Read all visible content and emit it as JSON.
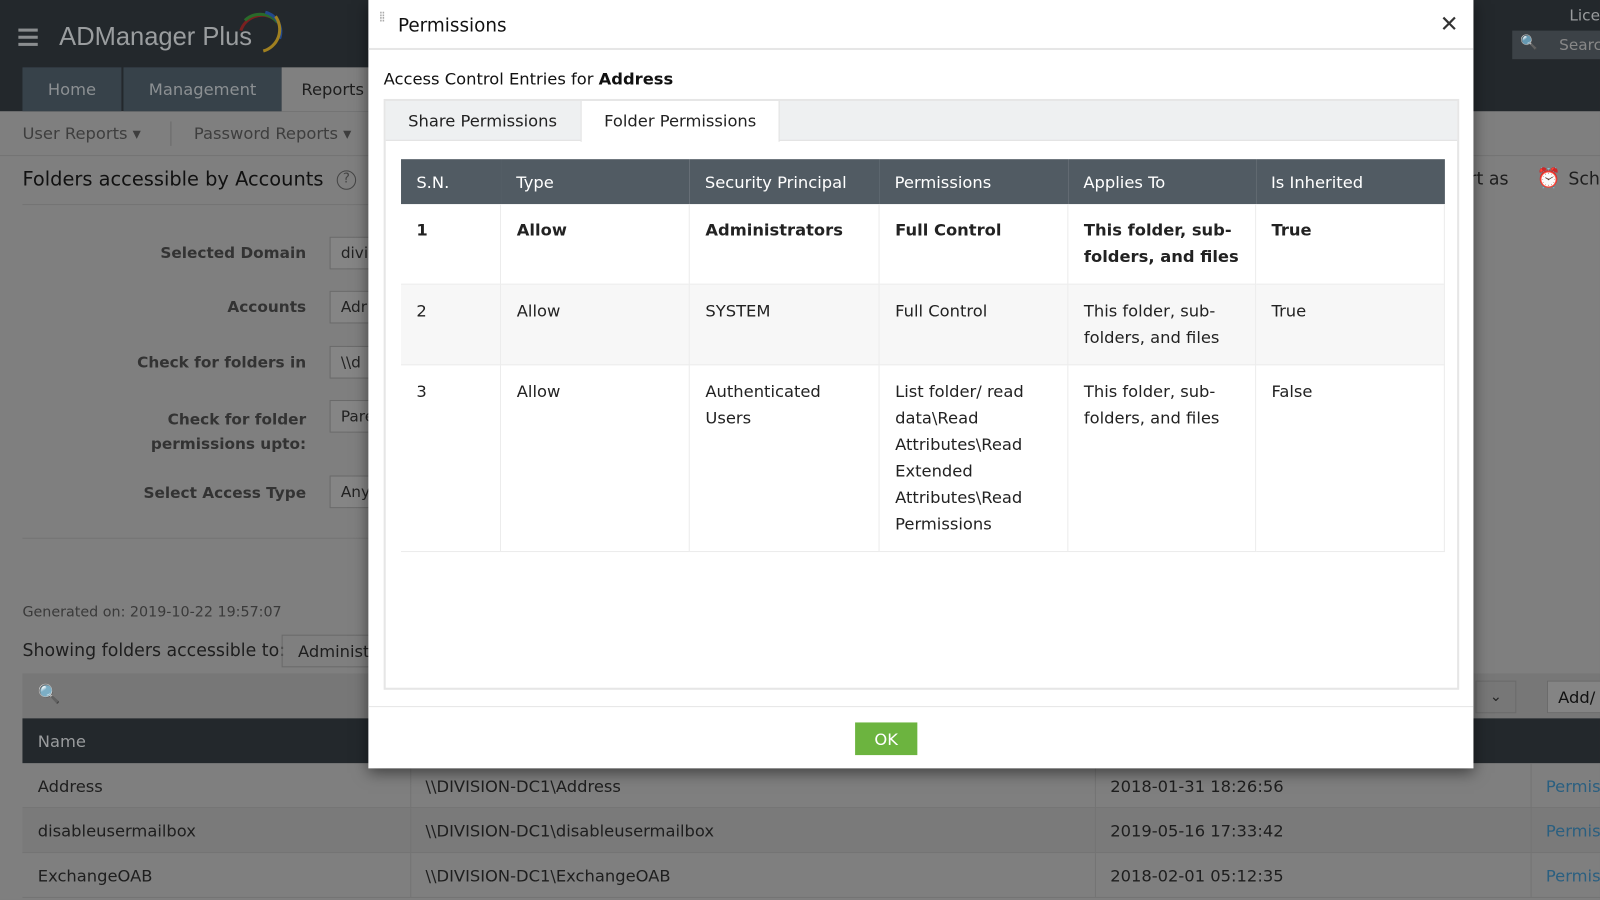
{
  "app": {
    "title": "ADManager Plus",
    "license": "Lice",
    "search_placeholder": "Search"
  },
  "nav": {
    "tabs": [
      "Home",
      "Management",
      "Reports"
    ]
  },
  "subnav": {
    "items": [
      "User Reports",
      "Password Reports"
    ]
  },
  "report": {
    "title": "Folders accessible by Accounts",
    "export_label": "rt as",
    "schedule_label": "Sch",
    "form": [
      {
        "label": "Selected Domain",
        "value": "divi"
      },
      {
        "label": "Accounts",
        "value": "Adr"
      },
      {
        "label": "Check for folders in",
        "value": "\\\\d"
      },
      {
        "label": "Check for folder permissions upto:",
        "value": "Pare"
      },
      {
        "label": "Select Access Type",
        "value": "Any"
      }
    ],
    "generated_on": "Generated on: 2019-10-22 19:57:07",
    "showing_label": "Showing folders accessible to:",
    "showing_value": "Administ",
    "add_label": "Add/",
    "table": {
      "header": "Name",
      "rows": [
        {
          "name": "Address",
          "path": "\\\\DIVISION-DC1\\Address",
          "date": "2018-01-31 18:26:56",
          "link": "Permis"
        },
        {
          "name": "disableusermailbox",
          "path": "\\\\DIVISION-DC1\\disableusermailbox",
          "date": "2019-05-16 17:33:42",
          "link": "Permis"
        },
        {
          "name": "ExchangeOAB",
          "path": "\\\\DIVISION-DC1\\ExchangeOAB",
          "date": "2018-02-01 05:12:35",
          "link": "Permis"
        }
      ]
    }
  },
  "modal": {
    "title": "Permissions",
    "subtitle_prefix": "Access Control Entries for ",
    "subtitle_target": "Address",
    "tabs": [
      "Share Permissions",
      "Folder Permissions"
    ],
    "active_tab": 1,
    "columns": [
      "S.N.",
      "Type",
      "Security Principal",
      "Permissions",
      "Applies To",
      "Is Inherited"
    ],
    "rows": [
      [
        "1",
        "Allow",
        "Administrators",
        "Full Control",
        "This folder, sub-folders, and files",
        "True"
      ],
      [
        "2",
        "Allow",
        "SYSTEM",
        "Full Control",
        "This folder, sub-folders, and files",
        "True"
      ],
      [
        "3",
        "Allow",
        "Authenticated Users",
        "List folder/ read data\\Read Attributes\\Read Extended Attributes\\Read Permissions",
        "This folder, sub-folders, and files",
        "False"
      ]
    ],
    "ok_label": "OK",
    "ok_color": "#6cb43f"
  }
}
